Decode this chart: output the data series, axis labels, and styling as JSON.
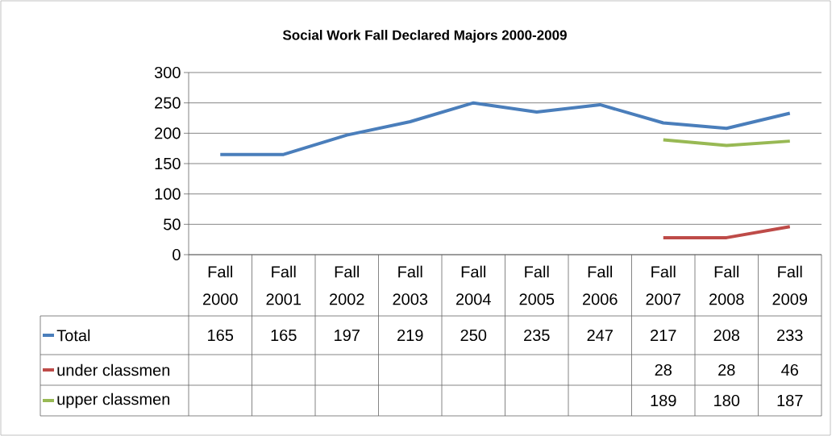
{
  "chart_data": {
    "type": "line",
    "title": "Social Work Fall Declared Majors 2000-2009",
    "categories": [
      "Fall 2000",
      "Fall 2001",
      "Fall 2002",
      "Fall 2003",
      "Fall 2004",
      "Fall 2005",
      "Fall 2006",
      "Fall 2007",
      "Fall 2008",
      "Fall 2009"
    ],
    "series": [
      {
        "name": "Total",
        "color": "#4a7ebb",
        "values": [
          165,
          165,
          197,
          219,
          250,
          235,
          247,
          217,
          208,
          233
        ]
      },
      {
        "name": "under classmen",
        "color": "#be4b48",
        "values": [
          null,
          null,
          null,
          null,
          null,
          null,
          null,
          28,
          28,
          46
        ]
      },
      {
        "name": "upper classmen",
        "color": "#98b954",
        "values": [
          null,
          null,
          null,
          null,
          null,
          null,
          null,
          189,
          180,
          187
        ]
      }
    ],
    "ylim": [
      0,
      300
    ],
    "yticks": [
      0,
      50,
      100,
      150,
      200,
      250,
      300
    ],
    "grid": "y",
    "data_labels": true,
    "legend": "bottom left",
    "marker": "none",
    "line_style": "solid"
  }
}
